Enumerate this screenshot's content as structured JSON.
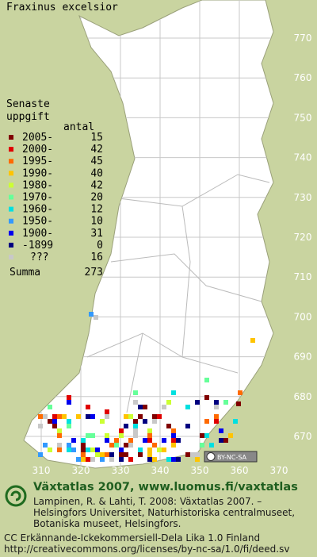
{
  "title": "Fraxinus excelsior",
  "legend": {
    "heading": [
      "Senaste",
      "uppgift"
    ],
    "count_label": "antal",
    "rows": [
      {
        "label": "2005-",
        "count": 15,
        "color": "#800000"
      },
      {
        "label": "2000-",
        "count": 42,
        "color": "#e00000"
      },
      {
        "label": "1995-",
        "count": 45,
        "color": "#ff6a00"
      },
      {
        "label": "1990-",
        "count": 40,
        "color": "#ffc400"
      },
      {
        "label": "1980-",
        "count": 42,
        "color": "#ccff33"
      },
      {
        "label": "1970-",
        "count": 20,
        "color": "#66ff99"
      },
      {
        "label": "1960-",
        "count": 12,
        "color": "#00e0e0"
      },
      {
        "label": "1950-",
        "count": 10,
        "color": "#3399ff"
      },
      {
        "label": "1900-",
        "count": 31,
        "color": "#0000ee"
      },
      {
        "label": "-1899",
        "count": 0,
        "color": "#000080"
      },
      {
        "label": "???",
        "count": 16,
        "color": "#c8c8c8"
      }
    ],
    "total": {
      "label": "Summa",
      "count": 273
    }
  },
  "x_labels": [
    310,
    320,
    330,
    340,
    350,
    360,
    370
  ],
  "y_labels": [
    770,
    760,
    750,
    740,
    730,
    720,
    710,
    700,
    690,
    680,
    670
  ],
  "license_badge": "BY-NC-SA",
  "footer": {
    "headline": "Växtatlas 2007, www.luomus.fi/vaxtatlas",
    "citation": [
      "Lampinen, R. & Lahti, T. 2008: Växtatlas 2007. –",
      "Helsingfors Universitet, Naturhistoriska centralmuseet,",
      "Botaniska museet, Helsingfors."
    ],
    "license": [
      "CC Erkännande-Ickekommersiell-Dela Lika 1.0 Finland",
      "http://creativecommons.org/licenses/by-nc-sa/1.0/fi/deed.sv"
    ]
  }
}
